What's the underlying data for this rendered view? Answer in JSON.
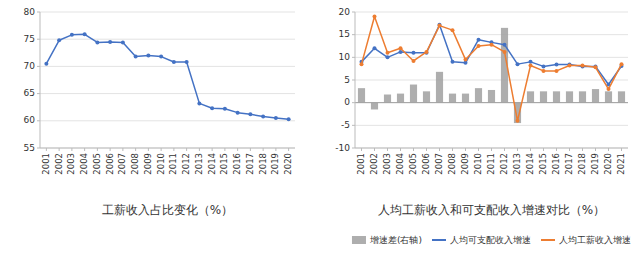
{
  "chart_data": [
    {
      "type": "line",
      "title": "工薪收入占比变化（%）",
      "categories": [
        "2001",
        "2002",
        "2003",
        "2004",
        "2005",
        "2006",
        "2007",
        "2008",
        "2009",
        "2010",
        "2011",
        "2012",
        "2013",
        "2014",
        "2015",
        "2016",
        "2017",
        "2018",
        "2019",
        "2020"
      ],
      "values": [
        70.5,
        74.8,
        75.8,
        75.9,
        74.4,
        74.5,
        74.4,
        71.8,
        72.0,
        71.8,
        70.8,
        70.8,
        63.2,
        62.3,
        62.2,
        61.5,
        61.2,
        60.8,
        60.5,
        60.3
      ],
      "color": "#4472C4",
      "marker": "circle",
      "ylim": [
        55,
        80
      ],
      "yticks": [
        55,
        60,
        65,
        70,
        75,
        80
      ],
      "grid": true
    },
    {
      "type": "bar",
      "title": "人均工薪收入和可支配收入增速对比（%）",
      "categories": [
        "2001",
        "2002",
        "2003",
        "2004",
        "2005",
        "2006",
        "2007",
        "2008",
        "2009",
        "2010",
        "2011",
        "2012",
        "2013",
        "2014",
        "2015",
        "2016",
        "2017",
        "2018",
        "2019",
        "2020",
        "2021"
      ],
      "series": [
        {
          "name": "增速差(右轴)",
          "type": "bar",
          "color": "#A0A0A0",
          "values": [
            3.2,
            -1.5,
            1.8,
            2.0,
            4.0,
            2.5,
            6.8,
            2.0,
            2.0,
            3.2,
            2.8,
            16.5,
            -4.5,
            2.5,
            2.5,
            2.5,
            2.5,
            2.5,
            3.0,
            2.5,
            2.5
          ]
        },
        {
          "name": "人均可支配收入增速",
          "type": "line",
          "color": "#4472C4",
          "marker": "circle",
          "values": [
            9.0,
            12.0,
            10.0,
            11.2,
            11.0,
            11.0,
            17.2,
            9.0,
            8.8,
            13.9,
            13.3,
            12.8,
            8.5,
            9.0,
            8.0,
            8.4,
            8.4,
            8.0,
            8.0,
            4.0,
            8.1
          ]
        },
        {
          "name": "人均工薪收入增速",
          "type": "line",
          "color": "#ED7D31",
          "marker": "circle",
          "values": [
            8.5,
            19.0,
            11.0,
            12.0,
            9.2,
            11.2,
            17.0,
            16.0,
            9.5,
            12.5,
            12.8,
            11.2,
            -4.0,
            8.2,
            7.0,
            7.0,
            8.2,
            8.2,
            7.8,
            3.0,
            8.5
          ]
        }
      ],
      "ylim": [
        -10,
        20
      ],
      "yticks": [
        -10,
        -5,
        0,
        5,
        10,
        15,
        20
      ],
      "grid": true,
      "legend": "bottom"
    }
  ]
}
